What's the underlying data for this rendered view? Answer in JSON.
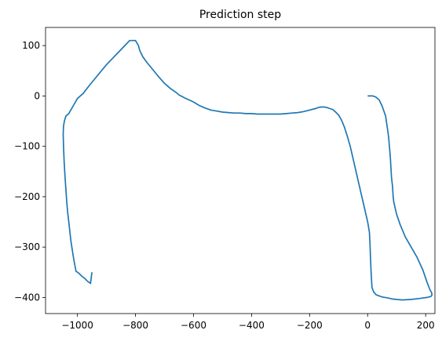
{
  "chart_data": {
    "type": "line",
    "title": "Prediction step",
    "xlabel": "",
    "ylabel": "",
    "xlim": [
      -1110,
      232
    ],
    "ylim": [
      -432,
      136
    ],
    "xticks": [
      -1000,
      -800,
      -600,
      -400,
      -200,
      0,
      200
    ],
    "yticks": [
      100,
      0,
      -100,
      -200,
      -300,
      -400
    ],
    "xtick_labels": [
      "−1000",
      "−800",
      "−600",
      "−400",
      "−200",
      "0",
      "200"
    ],
    "ytick_labels": [
      "100",
      "0",
      "−100",
      "−200",
      "−300",
      "−400"
    ],
    "grid": false,
    "legend": "none",
    "series": [
      {
        "color": "#1f77b4",
        "x": [
          0,
          18,
          28,
          40,
          50,
          62,
          72,
          78,
          82,
          86,
          88,
          90,
          94,
          100,
          112,
          130,
          150,
          170,
          190,
          205,
          215,
          220,
          222,
          218,
          205,
          180,
          150,
          120,
          100,
          85,
          70,
          50,
          30,
          22,
          18,
          15,
          12,
          10,
          8,
          6,
          0,
          -10,
          -20,
          -30,
          -40,
          -50,
          -60,
          -70,
          -80,
          -90,
          -100,
          -110,
          -120,
          -130,
          -140,
          -150,
          -160,
          -170,
          -180,
          -200,
          -220,
          -240,
          -260,
          -280,
          -300,
          -320,
          -340,
          -360,
          -380,
          -400,
          -420,
          -440,
          -460,
          -480,
          -500,
          -520,
          -540,
          -560,
          -580,
          -600,
          -615,
          -630,
          -640,
          -650,
          -660,
          -680,
          -700,
          -720,
          -740,
          -760,
          -775,
          -785,
          -790,
          -800,
          -820,
          -840,
          -860,
          -880,
          -900,
          -920,
          -940,
          -960,
          -980,
          -1000,
          -1010,
          -1020,
          -1025,
          -1030,
          -1040,
          -1045,
          -1048,
          -1049,
          -1048,
          -1046,
          -1043,
          -1040,
          -1037,
          -1034,
          -1030,
          -1026,
          -1022,
          -1018,
          -1014,
          -1010,
          -1005,
          -1000,
          -995,
          -990,
          -985,
          -980,
          -975,
          -970,
          -965,
          -960,
          -955,
          -950
        ],
        "y": [
          0,
          0,
          -2,
          -8,
          -20,
          -40,
          -80,
          -120,
          -160,
          -180,
          -200,
          -210,
          -220,
          -235,
          -255,
          -280,
          -300,
          -320,
          -345,
          -370,
          -385,
          -390,
          -395,
          -398,
          -400,
          -402,
          -404,
          -405,
          -404,
          -403,
          -401,
          -399,
          -395,
          -390,
          -385,
          -380,
          -350,
          -320,
          -290,
          -270,
          -250,
          -225,
          -200,
          -175,
          -150,
          -125,
          -100,
          -80,
          -62,
          -48,
          -38,
          -32,
          -27,
          -25,
          -23,
          -22,
          -22,
          -23,
          -25,
          -28,
          -31,
          -33,
          -34,
          -35,
          -36,
          -36,
          -36,
          -36,
          -36,
          -35,
          -35,
          -34,
          -34,
          -33,
          -32,
          -30,
          -28,
          -24,
          -19,
          -12,
          -8,
          -4,
          -1,
          2,
          7,
          15,
          25,
          38,
          52,
          66,
          78,
          90,
          100,
          110,
          110,
          98,
          86,
          74,
          62,
          48,
          34,
          20,
          5,
          -5,
          -15,
          -25,
          -30,
          -35,
          -40,
          -50,
          -60,
          -75,
          -100,
          -130,
          -160,
          -185,
          -210,
          -230,
          -250,
          -270,
          -290,
          -305,
          -320,
          -333,
          -348,
          -350,
          -352,
          -355,
          -358,
          -360,
          -362,
          -365,
          -368,
          -370,
          -372,
          -350
        ]
      }
    ]
  }
}
